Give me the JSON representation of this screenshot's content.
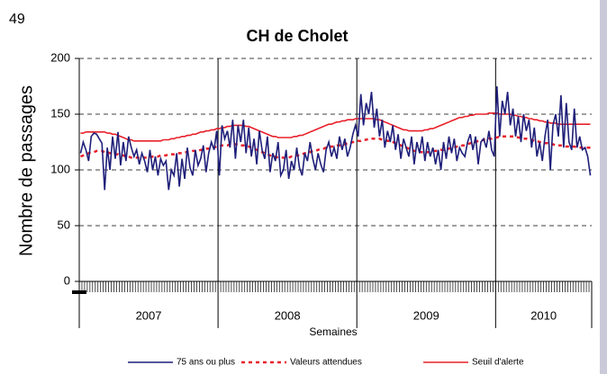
{
  "page_number": "49",
  "chart_data": {
    "type": "line",
    "title": "CH de Cholet",
    "ylabel": "Nombre de passages",
    "xlabel": "Semaines",
    "groups": [
      {
        "label": "2007",
        "size": 52
      },
      {
        "label": "2008",
        "size": 52
      },
      {
        "label": "2009",
        "size": 52
      },
      {
        "label": "2010",
        "size": 36
      }
    ],
    "ylim": [
      0,
      200
    ],
    "yticks": [
      0,
      50,
      100,
      150,
      200
    ],
    "grid": true,
    "legend": "bottom",
    "series": [
      {
        "name": "75 ans ou plus",
        "color": "#1f1f7a",
        "style": "solid",
        "values": [
          115,
          125,
          118,
          108,
          130,
          133,
          132,
          128,
          124,
          82,
          120,
          100,
          130,
          110,
          134,
          104,
          125,
          108,
          130,
          120,
          112,
          118,
          105,
          115,
          108,
          98,
          118,
          100,
          112,
          95,
          110,
          104,
          108,
          82,
          100,
          95,
          115,
          85,
          110,
          92,
          120,
          102,
          95,
          118,
          104,
          110,
          122,
          98,
          115,
          125,
          118,
          135,
          95,
          140,
          128,
          135,
          120,
          145,
          110,
          140,
          125,
          145,
          115,
          138,
          112,
          128,
          105,
          135,
          118,
          110,
          130,
          98,
          115,
          108,
          125,
          95,
          100,
          118,
          92,
          108,
          100,
          120,
          102,
          95,
          115,
          108,
          125,
          110,
          100,
          115,
          105,
          98,
          118,
          125,
          112,
          120,
          110,
          130,
          118,
          128,
          112,
          120,
          132,
          140,
          130,
          168,
          140,
          160,
          150,
          170,
          138,
          155,
          130,
          145,
          120,
          135,
          125,
          140,
          118,
          132,
          110,
          128,
          120,
          112,
          130,
          105,
          125,
          115,
          130,
          108,
          125,
          112,
          120,
          105,
          118,
          100,
          125,
          110,
          130,
          115,
          128,
          108,
          120,
          115,
          112,
          125,
          132,
          118,
          130,
          105,
          125,
          128,
          120,
          135,
          118,
          112,
          175,
          130,
          162,
          150,
          170,
          140,
          155,
          130,
          148,
          125,
          150,
          135,
          145,
          120,
          138,
          112,
          125,
          108,
          130,
          145,
          100,
          140,
          150,
          130,
          167,
          120,
          160,
          125,
          118,
          155,
          120,
          130,
          118,
          120,
          112,
          95
        ]
      },
      {
        "name": "Valeurs attendues",
        "color": "#e8202a",
        "style": "dashed",
        "values": [
          112,
          113,
          114,
          115,
          116,
          116,
          117,
          117,
          117,
          116,
          116,
          115,
          115,
          114,
          114,
          113,
          113,
          112,
          112,
          111,
          111,
          111,
          111,
          111,
          111,
          111,
          111,
          112,
          112,
          112,
          113,
          113,
          113,
          114,
          114,
          114,
          115,
          115,
          115,
          116,
          116,
          116,
          117,
          117,
          117,
          118,
          118,
          119,
          119,
          120,
          120,
          121,
          121,
          122,
          122,
          122,
          123,
          123,
          123,
          123,
          122,
          122,
          121,
          121,
          120,
          119,
          118,
          117,
          116,
          115,
          114,
          113,
          112,
          112,
          111,
          111,
          111,
          111,
          111,
          112,
          112,
          113,
          113,
          114,
          115,
          115,
          116,
          117,
          117,
          118,
          119,
          119,
          120,
          120,
          121,
          121,
          122,
          122,
          123,
          123,
          124,
          124,
          125,
          125,
          126,
          126,
          127,
          127,
          128,
          128,
          128,
          128,
          128,
          127,
          127,
          126,
          126,
          125,
          124,
          123,
          122,
          121,
          120,
          119,
          118,
          117,
          117,
          116,
          116,
          116,
          116,
          116,
          117,
          117,
          117,
          118,
          118,
          119,
          119,
          120,
          120,
          121,
          121,
          122,
          122,
          123,
          124,
          124,
          125,
          126,
          126,
          127,
          127,
          128,
          128,
          129,
          129,
          130,
          130,
          130,
          130,
          130,
          130,
          130,
          129,
          129,
          128,
          128,
          127,
          127,
          126,
          126,
          125,
          125,
          124,
          124,
          123,
          123,
          122,
          122,
          122,
          121,
          121,
          121,
          121,
          121,
          120,
          120,
          120,
          120,
          120,
          120
        ]
      },
      {
        "name": "Seuil d'alerte",
        "color": "#e8202a",
        "style": "solid",
        "values": [
          133,
          133,
          134,
          134,
          134,
          134,
          134,
          134,
          134,
          134,
          133,
          133,
          132,
          132,
          131,
          130,
          129,
          128,
          127,
          127,
          126,
          126,
          126,
          126,
          126,
          126,
          126,
          126,
          126,
          126,
          126,
          127,
          127,
          127,
          128,
          128,
          129,
          129,
          130,
          130,
          131,
          131,
          132,
          132,
          133,
          134,
          134,
          135,
          135,
          136,
          136,
          137,
          137,
          138,
          138,
          139,
          139,
          140,
          140,
          140,
          140,
          140,
          139,
          139,
          138,
          137,
          136,
          135,
          134,
          133,
          132,
          131,
          130,
          130,
          129,
          129,
          129,
          129,
          129,
          129,
          130,
          130,
          131,
          131,
          132,
          133,
          134,
          135,
          136,
          137,
          138,
          139,
          140,
          141,
          141,
          142,
          143,
          143,
          144,
          144,
          145,
          145,
          145,
          146,
          146,
          146,
          146,
          146,
          146,
          146,
          146,
          145,
          145,
          144,
          143,
          142,
          141,
          140,
          139,
          138,
          137,
          136,
          136,
          135,
          135,
          135,
          135,
          135,
          135,
          136,
          136,
          137,
          137,
          138,
          139,
          140,
          141,
          142,
          143,
          144,
          145,
          146,
          147,
          147,
          148,
          148,
          149,
          149,
          150,
          150,
          150,
          150,
          150,
          151,
          151,
          151,
          151,
          150,
          150,
          150,
          150,
          150,
          149,
          149,
          148,
          148,
          147,
          147,
          146,
          146,
          145,
          145,
          144,
          144,
          143,
          143,
          142,
          142,
          142,
          141,
          141,
          141,
          141,
          141,
          141,
          141,
          141,
          141,
          141,
          141,
          141,
          141
        ]
      }
    ]
  }
}
